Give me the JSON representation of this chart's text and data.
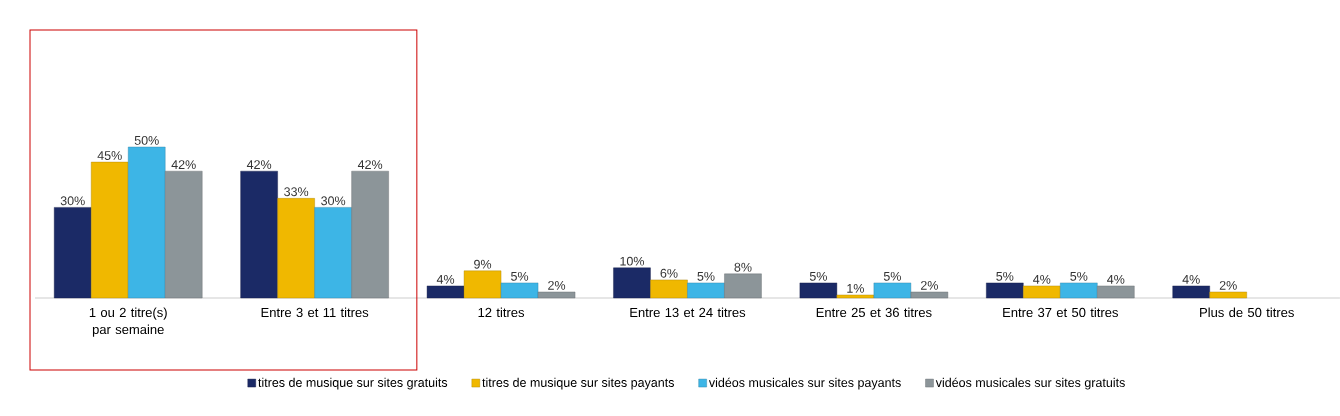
{
  "chart_data": {
    "type": "bar",
    "categories": [
      "1 ou 2 titre(s) par semaine",
      "Entre 3 et 11 titres",
      "12 titres",
      "Entre 13 et 24 titres",
      "Entre 25 et 36 titres",
      "Entre 37 et 50 titres",
      "Plus de 50 titres"
    ],
    "series": [
      {
        "name": "titres de musique sur sites gratuits",
        "color": "#1b2a66",
        "values": [
          30,
          42,
          4,
          10,
          5,
          5,
          4
        ],
        "value_labels": [
          "30%",
          "42%",
          "4%",
          "10%",
          "5%",
          "5%",
          "4%"
        ]
      },
      {
        "name": "titres de musique sur sites payants",
        "color": "#f0b800",
        "values": [
          45,
          33,
          9,
          6,
          1,
          4,
          2
        ],
        "value_labels": [
          "45%",
          "33%",
          "9%",
          "6%",
          "1%",
          "4%",
          "2%"
        ]
      },
      {
        "name": "vidéos musicales sur sites payants",
        "color": "#3db5e6",
        "values": [
          50,
          30,
          5,
          5,
          5,
          5,
          null
        ],
        "value_labels": [
          "50%",
          "30%",
          "5%",
          "5%",
          "5%",
          "5%",
          null
        ]
      },
      {
        "name": "vidéos musicales sur sites gratuits",
        "color": "#8c9599",
        "values": [
          42,
          42,
          2,
          8,
          2,
          4,
          null
        ],
        "value_labels": [
          "42%",
          "42%",
          "2%",
          "8%",
          "2%",
          "4%",
          null
        ]
      }
    ],
    "tick_labels": "x",
    "legend": "bottom"
  }
}
